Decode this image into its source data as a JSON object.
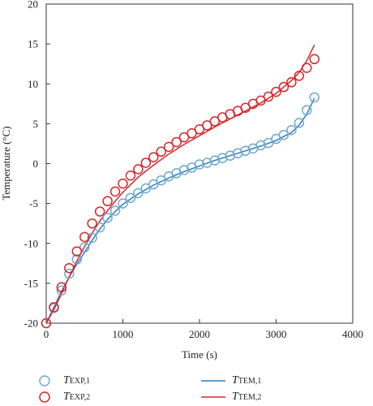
{
  "chart_data": {
    "type": "line",
    "xlabel": "Time (s)",
    "ylabel": "Temperature (°C)",
    "xlim": [
      0,
      4000
    ],
    "ylim": [
      -20,
      20
    ],
    "xticks": [
      0,
      1000,
      2000,
      3000,
      4000
    ],
    "yticks": [
      -20,
      -15,
      -10,
      -5,
      0,
      5,
      10,
      15,
      20
    ],
    "grid": false,
    "legend_position": "bottom",
    "colors": {
      "exp1": "#6fa8d0",
      "exp2": "#d7262c",
      "tem1": "#2e7dbb",
      "tem2": "#d7262c"
    },
    "series": [
      {
        "name": "T_EXP,1",
        "label_main": "T",
        "label_sub": "EXP,1",
        "kind": "markers",
        "color": "#6fa8d0",
        "x": [
          0,
          100,
          200,
          300,
          400,
          500,
          600,
          700,
          800,
          900,
          1000,
          1100,
          1200,
          1300,
          1400,
          1500,
          1600,
          1700,
          1800,
          1900,
          2000,
          2100,
          2200,
          2300,
          2400,
          2500,
          2600,
          2700,
          2800,
          2900,
          3000,
          3100,
          3200,
          3300,
          3400,
          3500
        ],
        "values": [
          -20,
          -18.1,
          -15.9,
          -13.8,
          -12.0,
          -10.5,
          -9.3,
          -8.0,
          -6.8,
          -5.9,
          -5.0,
          -4.3,
          -3.7,
          -3.1,
          -2.6,
          -2.1,
          -1.6,
          -1.2,
          -0.8,
          -0.5,
          -0.1,
          0.1,
          0.4,
          0.7,
          1.0,
          1.3,
          1.6,
          1.9,
          2.3,
          2.6,
          3.1,
          3.6,
          4.2,
          5.1,
          6.7,
          8.3
        ]
      },
      {
        "name": "T_EXP,2",
        "label_main": "T",
        "label_sub": "EXP,2",
        "kind": "markers",
        "color": "#d7262c",
        "x": [
          0,
          100,
          200,
          300,
          400,
          500,
          600,
          700,
          800,
          900,
          1000,
          1100,
          1200,
          1300,
          1400,
          1500,
          1600,
          1700,
          1800,
          1900,
          2000,
          2100,
          2200,
          2300,
          2400,
          2500,
          2600,
          2700,
          2800,
          2900,
          3000,
          3100,
          3200,
          3300,
          3400,
          3500
        ],
        "values": [
          -20,
          -18.0,
          -15.5,
          -13.1,
          -11.0,
          -9.2,
          -7.5,
          -6.0,
          -4.7,
          -3.5,
          -2.5,
          -1.5,
          -0.7,
          0.1,
          0.8,
          1.5,
          2.1,
          2.7,
          3.3,
          3.8,
          4.3,
          4.8,
          5.3,
          5.8,
          6.2,
          6.6,
          7.0,
          7.5,
          7.9,
          8.4,
          9.0,
          9.6,
          10.2,
          11.0,
          12.0,
          13.1
        ]
      },
      {
        "name": "T_TEM,1",
        "label_main": "T",
        "label_sub": "TEM,1",
        "kind": "line",
        "color": "#2e7dbb",
        "x": [
          0,
          100,
          200,
          300,
          400,
          500,
          600,
          700,
          800,
          900,
          1000,
          1200,
          1400,
          1600,
          1800,
          2000,
          2200,
          2400,
          2600,
          2800,
          3000,
          3200,
          3300,
          3400,
          3500
        ],
        "values": [
          -20,
          -18.0,
          -16.0,
          -14.2,
          -12.6,
          -11.1,
          -9.6,
          -8.2,
          -7.0,
          -6.0,
          -5.1,
          -3.8,
          -2.7,
          -1.8,
          -1.0,
          -0.3,
          0.4,
          1.0,
          1.6,
          2.2,
          2.9,
          3.9,
          4.8,
          6.2,
          8.2
        ]
      },
      {
        "name": "T_TEM,2",
        "label_main": "T",
        "label_sub": "TEM,2",
        "kind": "line",
        "color": "#d7262c",
        "x": [
          0,
          100,
          200,
          300,
          400,
          500,
          600,
          700,
          800,
          900,
          1000,
          1200,
          1400,
          1600,
          1800,
          2000,
          2200,
          2400,
          2600,
          2800,
          3000,
          3200,
          3300,
          3400,
          3500
        ],
        "values": [
          -20,
          -18.3,
          -16.3,
          -14.2,
          -12.2,
          -10.4,
          -8.7,
          -7.2,
          -5.9,
          -4.7,
          -3.6,
          -1.7,
          -0.2,
          1.2,
          2.4,
          3.5,
          4.6,
          5.6,
          6.6,
          7.6,
          8.8,
          10.4,
          11.4,
          12.9,
          14.9
        ]
      }
    ]
  }
}
